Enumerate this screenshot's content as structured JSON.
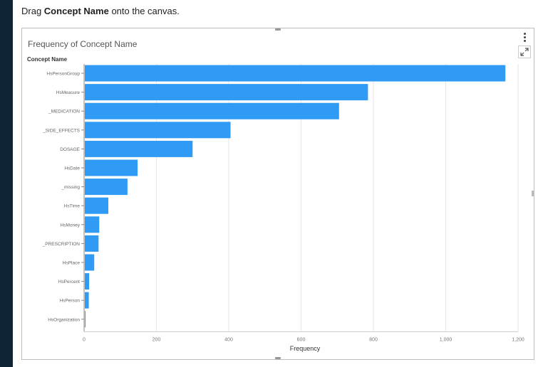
{
  "instruction": {
    "prefix": "Drag ",
    "bold": "Concept Name",
    "suffix": " onto the canvas."
  },
  "panel": {
    "title": "Frequency of Concept Name"
  },
  "colors": {
    "bar": "#2f9bf4",
    "grid": "#e6e6e6",
    "axis": "#888888"
  },
  "icons": {
    "menu": "more-vertical-icon",
    "expand": "expand-icon"
  },
  "chart_data": {
    "type": "bar",
    "orientation": "horizontal",
    "title": "Frequency of Concept Name",
    "ylabel": "Concept Name",
    "xlabel": "Frequency",
    "categories": [
      "HsPersonGroup",
      "HsMeasure",
      "_MEDICATION",
      "_SIDE_EFFECTS",
      "DOSAGE",
      "HsDate",
      "_missing",
      "HsTime",
      "HsMoney",
      "_PRESCRIPTION",
      "HsPlace",
      "HsPercent",
      "HsPerson",
      "HsOrganization"
    ],
    "values": [
      1165,
      785,
      705,
      405,
      300,
      148,
      120,
      67,
      42,
      40,
      28,
      14,
      13,
      3
    ],
    "xlim": [
      0,
      1200
    ],
    "xticks": [
      0,
      200,
      400,
      600,
      800,
      1000,
      1200
    ],
    "xtick_labels": [
      "0",
      "200",
      "400",
      "600",
      "800",
      "1,000",
      "1,200"
    ],
    "grid": true
  }
}
